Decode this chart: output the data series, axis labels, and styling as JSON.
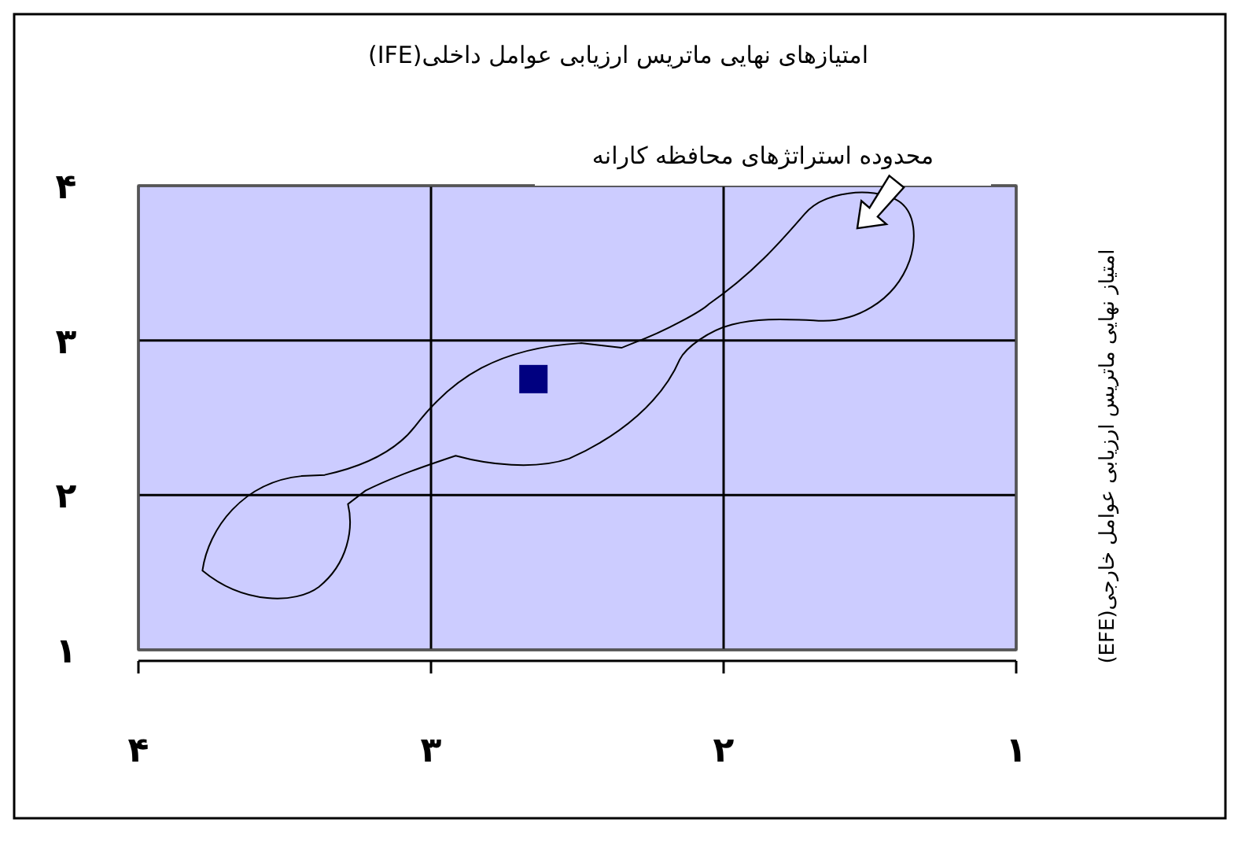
{
  "chart_data": {
    "type": "scatter",
    "title": "امتیازهای نهایی ماتریس ارزیابی عوامل داخلی(IFE)",
    "ylabel": "امتیاز نهایی ماتریس ارزیابی عوامل خارجی(EFE)",
    "annotations": [
      "محدوده استراتژهای محافظه کارانه"
    ],
    "x": [
      2.65
    ],
    "series": [
      {
        "color": "#000080",
        "values": [
          2.75
        ]
      }
    ],
    "xlim": [
      4,
      1
    ],
    "ylim": [
      1,
      4
    ],
    "xticks": [
      {
        "value": 4,
        "label": "۴"
      },
      {
        "value": 3,
        "label": "۳"
      },
      {
        "value": 2,
        "label": "۲"
      },
      {
        "value": 1,
        "label": "۱"
      }
    ],
    "yticks": [
      {
        "value": 1,
        "label": "۱"
      },
      {
        "value": 2,
        "label": "۲"
      },
      {
        "value": 3,
        "label": "۳"
      },
      {
        "value": 4,
        "label": "۴"
      }
    ],
    "grid": true,
    "marker": "square"
  }
}
